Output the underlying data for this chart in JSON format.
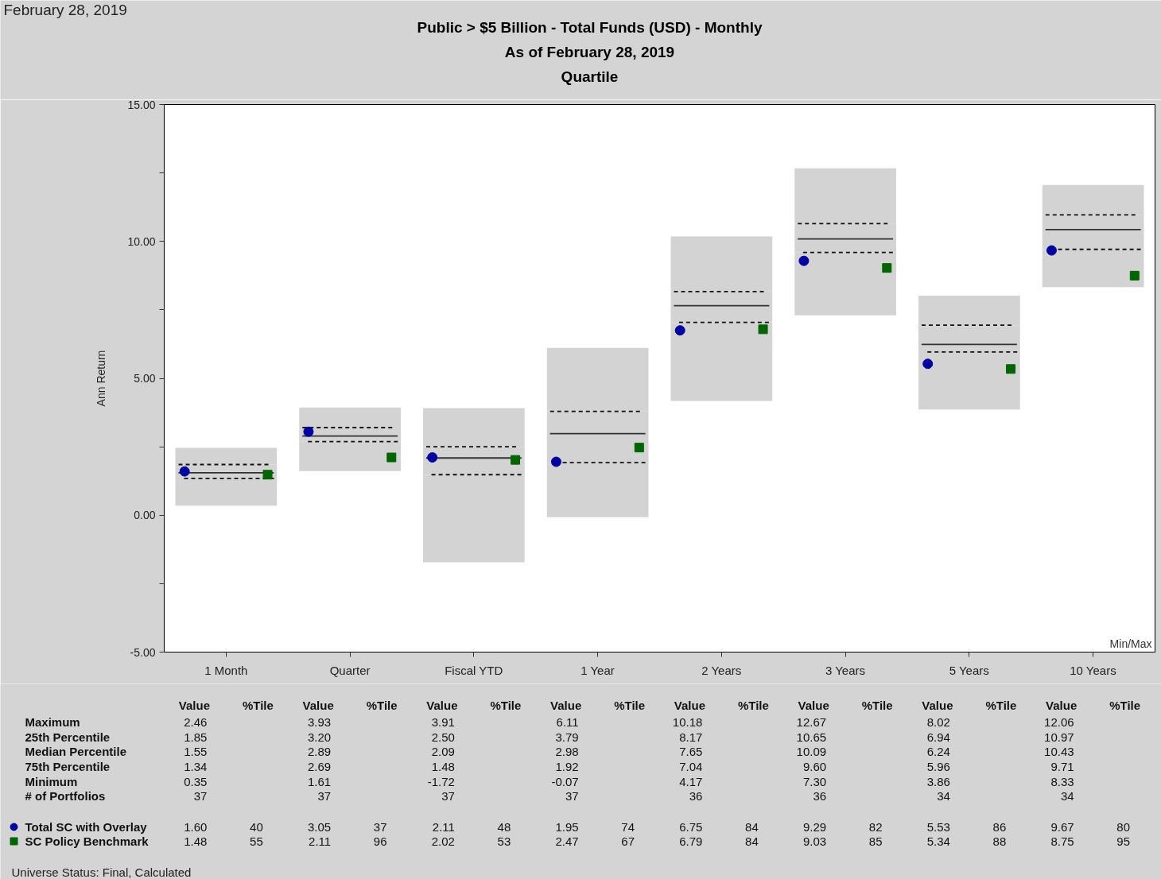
{
  "chart_data": {
    "type": "box",
    "title": "Public > $5 Billion - Total Funds (USD) - Monthly",
    "subtitle": "As of February 28, 2019\nQuartile",
    "ylabel": "Ann Return",
    "categories": [
      "1 Month",
      "Quarter",
      "Fiscal YTD",
      "1 Year",
      "2 Years",
      "3 Years",
      "5 Years",
      "10 Years"
    ],
    "color": "#d3d3d3",
    "boxes": [
      {
        "low": 0.35,
        "q1": 1.34,
        "median": 1.55,
        "q3": 1.85,
        "high": 2.46
      },
      {
        "low": 1.61,
        "q1": 2.69,
        "median": 2.89,
        "q3": 3.2,
        "high": 3.93
      },
      {
        "low": -1.72,
        "q1": 1.48,
        "median": 2.09,
        "q3": 2.5,
        "high": 3.91
      },
      {
        "low": -0.07,
        "q1": 1.92,
        "median": 2.98,
        "q3": 3.79,
        "high": 6.11
      },
      {
        "low": 4.17,
        "q1": 7.04,
        "median": 7.65,
        "q3": 8.17,
        "high": 10.18
      },
      {
        "low": 7.3,
        "q1": 9.6,
        "median": 10.09,
        "q3": 10.65,
        "high": 12.67
      },
      {
        "low": 3.86,
        "q1": 5.96,
        "median": 6.24,
        "q3": 6.94,
        "high": 8.02
      },
      {
        "low": 8.33,
        "q1": 9.71,
        "median": 10.43,
        "q3": 10.97,
        "high": 12.06
      }
    ],
    "series": [
      {
        "name": "Total SC with Overlay",
        "type": "scatter",
        "marker": "circle",
        "color": "#0000a0",
        "values": [
          1.6,
          3.05,
          2.11,
          1.95,
          6.75,
          9.29,
          5.53,
          9.67
        ],
        "value_labels": [
          "1.60",
          "3.05",
          "2.11",
          "1.95",
          "6.75",
          "9.29",
          "5.53",
          "9.67"
        ]
      },
      {
        "name": "SC Policy Benchmark",
        "type": "scatter",
        "marker": "square",
        "color": "#006400",
        "values": [
          1.48,
          2.11,
          2.02,
          2.47,
          6.79,
          9.03,
          5.34,
          8.75
        ],
        "value_labels": [
          "1.48",
          "2.11",
          "2.02",
          "2.47",
          "6.79",
          "9.03",
          "5.34",
          "8.75"
        ]
      }
    ],
    "ylim": [
      -5,
      15
    ],
    "yticks": [
      {
        "value": -5,
        "label": "-5.00"
      },
      {
        "value": -2.5,
        "label": null
      },
      {
        "value": 0,
        "label": "0.00"
      },
      {
        "value": 2.5,
        "label": null
      },
      {
        "value": 5,
        "label": "5.00"
      },
      {
        "value": 7.5,
        "label": null
      },
      {
        "value": 10,
        "label": "10.00"
      },
      {
        "value": 12.5,
        "label": null
      },
      {
        "value": 15,
        "label": "15.00"
      }
    ],
    "legend": "bottom",
    "annotations": [
      "February 28, 2019",
      "Min/Max",
      "Value",
      "%Tile",
      "Maximum",
      "2.46",
      "3.93",
      "3.91",
      "6.11",
      "10.18",
      "12.67",
      "8.02",
      "12.06",
      "25th Percentile",
      "1.85",
      "3.20",
      "2.50",
      "3.79",
      "8.17",
      "10.65",
      "6.94",
      "10.97",
      "Median Percentile",
      "1.55",
      "2.89",
      "2.09",
      "2.98",
      "7.65",
      "10.09",
      "6.24",
      "10.43",
      "75th Percentile",
      "1.34",
      "2.69",
      "1.48",
      "1.92",
      "7.04",
      "9.60",
      "5.96",
      "9.71",
      "Minimum",
      "0.35",
      "1.61",
      "-1.72",
      "-0.07",
      "4.17",
      "7.30",
      "3.86",
      "8.33",
      "# of Portfolios",
      "37",
      "37",
      "37",
      "37",
      "36",
      "36",
      "34",
      "34",
      "40",
      "37",
      "48",
      "74",
      "84",
      "82",
      "86",
      "80",
      "55",
      "96",
      "53",
      "67",
      "84",
      "85",
      "88",
      "95",
      "Universe Status: Final, Calculated"
    ]
  }
}
